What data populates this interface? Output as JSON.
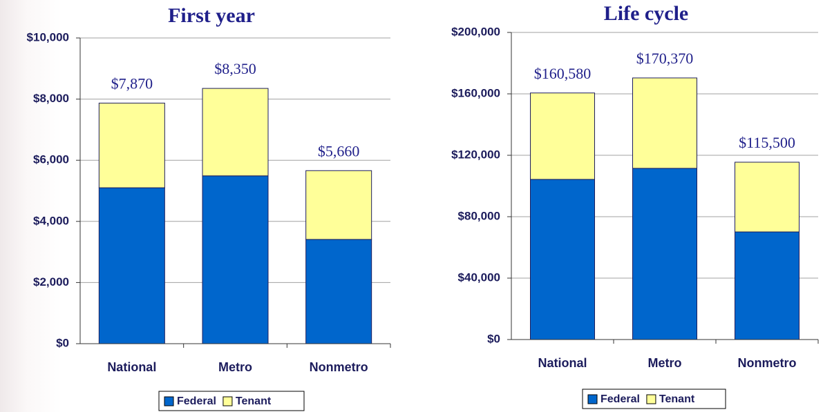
{
  "chart_data": [
    {
      "type": "stacked_bar",
      "title": "First year",
      "categories": [
        "National",
        "Metro",
        "Nonmetro"
      ],
      "series": [
        {
          "name": "Federal",
          "color": "#0066cc",
          "values": [
            5100,
            5490,
            3410
          ]
        },
        {
          "name": "Tenant",
          "color": "#ffff99",
          "values": [
            2770,
            2860,
            2250
          ]
        }
      ],
      "total_labels": [
        "$7,870",
        "$8,350",
        "$5,660"
      ],
      "ylim": [
        0,
        10000
      ],
      "yticks": [
        {
          "value": 0,
          "label": "$0"
        },
        {
          "value": 2000,
          "label": "$2,000"
        },
        {
          "value": 4000,
          "label": "$4,000"
        },
        {
          "value": 6000,
          "label": "$6,000"
        },
        {
          "value": 8000,
          "label": "$8,000"
        },
        {
          "value": 10000,
          "label": "$10,000"
        }
      ],
      "grid": true,
      "legend": "bottom"
    },
    {
      "type": "stacked_bar",
      "title": "Life cycle",
      "categories": [
        "National",
        "Metro",
        "Nonmetro"
      ],
      "series": [
        {
          "name": "Federal",
          "color": "#0066cc",
          "values": [
            104300,
            111500,
            70100
          ]
        },
        {
          "name": "Tenant",
          "color": "#ffff99",
          "values": [
            56280,
            58870,
            45400
          ]
        }
      ],
      "total_labels": [
        "$160,580",
        "$170,370",
        "$115,500"
      ],
      "ylim": [
        0,
        200000
      ],
      "yticks": [
        {
          "value": 0,
          "label": "$0"
        },
        {
          "value": 40000,
          "label": "$40,000"
        },
        {
          "value": 80000,
          "label": "$80,000"
        },
        {
          "value": 120000,
          "label": "$120,000"
        },
        {
          "value": 160000,
          "label": "$160,000"
        },
        {
          "value": 200000,
          "label": "$200,000"
        }
      ],
      "grid": true,
      "legend": "bottom"
    }
  ]
}
